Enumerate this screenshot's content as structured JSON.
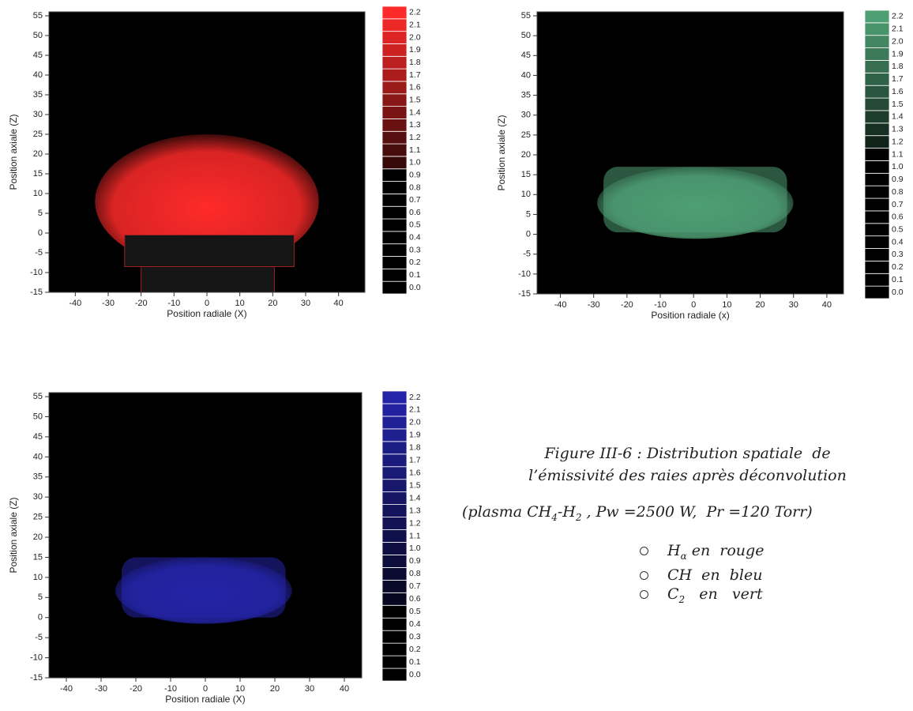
{
  "chart_data": [
    {
      "type": "heatmap",
      "color": "#ff2a2a",
      "xlabel": "Position radiale (X)",
      "ylabel": "Position axiale (Z)",
      "xlim": [
        -48,
        48
      ],
      "ylim": [
        -15,
        56
      ],
      "xticks": [
        -40,
        -30,
        -20,
        -10,
        0,
        10,
        20,
        30,
        40
      ],
      "yticks": [
        -15,
        -10,
        -5,
        0,
        5,
        10,
        15,
        20,
        25,
        30,
        35,
        40,
        45,
        50,
        55
      ],
      "colorbar": [
        {
          "value": 0,
          "label": "0.0"
        },
        0.1,
        0.2,
        0.3,
        0.4,
        0.5,
        0.6,
        0.7,
        0.8,
        0.9,
        {
          "value": 1,
          "label": "1.0"
        },
        1.1,
        1.2,
        1.3,
        1.4,
        1.5,
        1.6,
        1.7,
        1.8,
        1.9,
        {
          "value": 2,
          "label": "2.0"
        },
        2.1,
        2.2
      ]
    },
    {
      "type": "heatmap",
      "color": "#4f9f74",
      "xlabel": "Position radiale (x)",
      "ylabel": "Position axiale (Z)",
      "xlim": [
        -47,
        45
      ],
      "ylim": [
        -15,
        56
      ],
      "xticks": [
        -40,
        -30,
        -20,
        -10,
        0,
        10,
        20,
        30,
        40
      ],
      "yticks": [
        -15,
        -10,
        -5,
        0,
        5,
        10,
        15,
        20,
        25,
        30,
        35,
        40,
        45,
        50,
        55
      ],
      "colorbar": [
        {
          "value": 0,
          "label": "0.0"
        },
        0.1,
        0.2,
        0.3,
        0.4,
        0.5,
        0.6,
        0.7,
        0.8,
        0.9,
        {
          "value": 1,
          "label": "1.0"
        },
        1.1,
        1.2,
        1.3,
        1.4,
        1.5,
        1.6,
        1.7,
        1.8,
        1.9,
        {
          "value": 2,
          "label": "2.0"
        },
        2.1,
        2.2
      ]
    },
    {
      "type": "heatmap",
      "color": "#2424a8",
      "xlabel": "Position radiale (X)",
      "ylabel": "Position axiale (Z)",
      "xlim": [
        -45,
        45
      ],
      "ylim": [
        -15,
        56
      ],
      "xticks": [
        -40,
        -30,
        -20,
        -10,
        0,
        10,
        20,
        30,
        40
      ],
      "yticks": [
        -15,
        -10,
        -5,
        0,
        5,
        10,
        15,
        20,
        25,
        30,
        35,
        40,
        45,
        50,
        55
      ],
      "colorbar": [
        {
          "value": 0,
          "label": "0.0"
        },
        0.1,
        0.2,
        0.3,
        0.4,
        0.5,
        0.6,
        0.7,
        0.8,
        0.9,
        {
          "value": 1,
          "label": "1.0"
        },
        1.1,
        1.2,
        1.3,
        1.4,
        1.5,
        1.6,
        1.7,
        1.8,
        1.9,
        {
          "value": 2,
          "label": "2.0"
        },
        2.1,
        2.2
      ]
    }
  ],
  "caption": {
    "title": [
      "Figure III-6 : Distribution spatiale  de",
      "l’émissivité des raies après déconvolution"
    ],
    "conditions": [
      "(plasma CH",
      "4",
      "-H",
      "2",
      " , Pw =2500 W,  Pr =120 Torr)"
    ],
    "legend": [
      [
        "H",
        "α",
        " en  rouge"
      ],
      [
        "CH  en  bleu"
      ],
      [
        "C",
        "2",
        "   en   vert"
      ]
    ]
  }
}
